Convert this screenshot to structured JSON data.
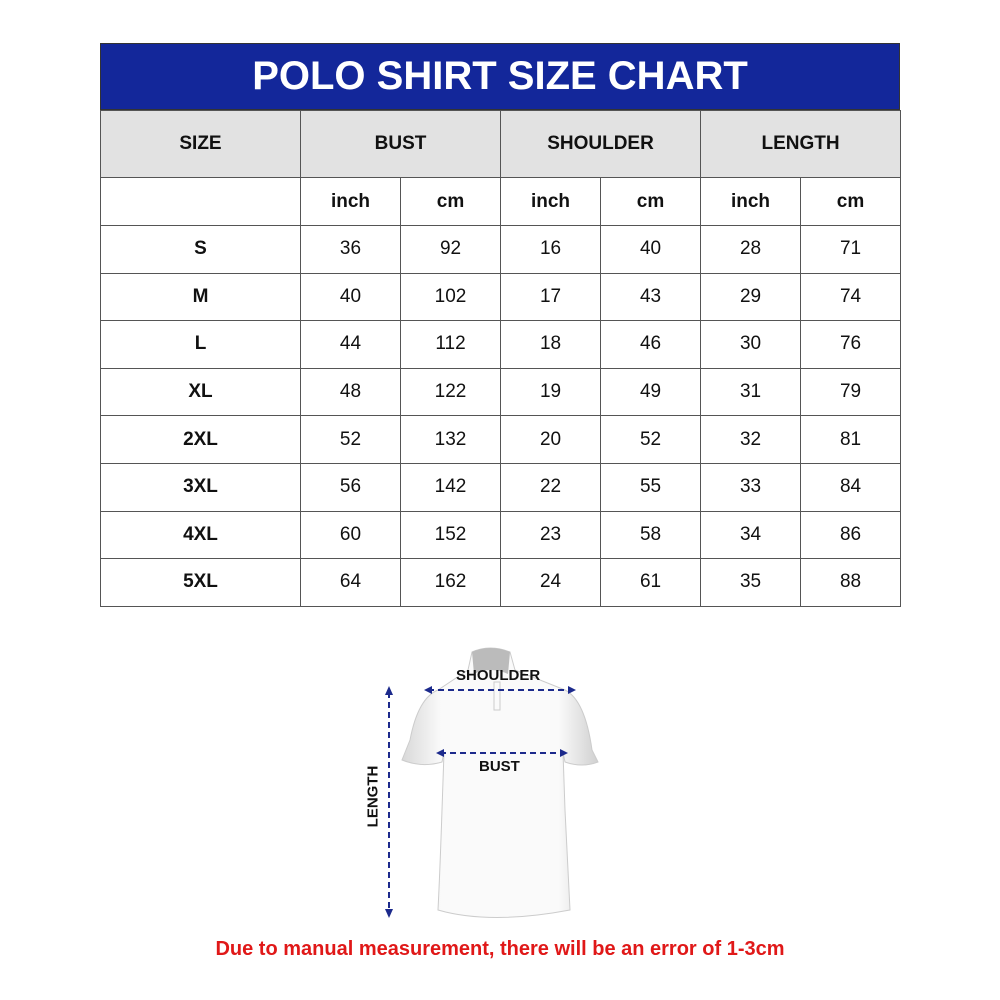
{
  "title": "POLO SHIRT SIZE CHART",
  "headers": {
    "size": "SIZE",
    "bust": "BUST",
    "shoulder": "SHOULDER",
    "length": "LENGTH"
  },
  "units": [
    "inch",
    "cm",
    "inch",
    "cm",
    "inch",
    "cm"
  ],
  "rows": [
    {
      "size": "S",
      "values": [
        "36",
        "92",
        "16",
        "40",
        "28",
        "71"
      ]
    },
    {
      "size": "M",
      "values": [
        "40",
        "102",
        "17",
        "43",
        "29",
        "74"
      ]
    },
    {
      "size": "L",
      "values": [
        "44",
        "112",
        "18",
        "46",
        "30",
        "76"
      ]
    },
    {
      "size": "XL",
      "values": [
        "48",
        "122",
        "19",
        "49",
        "31",
        "79"
      ]
    },
    {
      "size": "2XL",
      "values": [
        "52",
        "132",
        "20",
        "52",
        "32",
        "81"
      ]
    },
    {
      "size": "3XL",
      "values": [
        "56",
        "142",
        "22",
        "55",
        "33",
        "84"
      ]
    },
    {
      "size": "4XL",
      "values": [
        "60",
        "152",
        "23",
        "58",
        "34",
        "86"
      ]
    },
    {
      "size": "5XL",
      "values": [
        "64",
        "162",
        "24",
        "61",
        "35",
        "88"
      ]
    }
  ],
  "diagram": {
    "shoulder": "SHOULDER",
    "bust": "BUST",
    "length": "LENGTH"
  },
  "note": "Due to manual measurement, there will be an error of 1-3cm",
  "colors": {
    "header_bg": "#13279a",
    "subheader_bg": "#e2e2e2",
    "note": "#e01818",
    "arrow": "#1c2a8c"
  }
}
